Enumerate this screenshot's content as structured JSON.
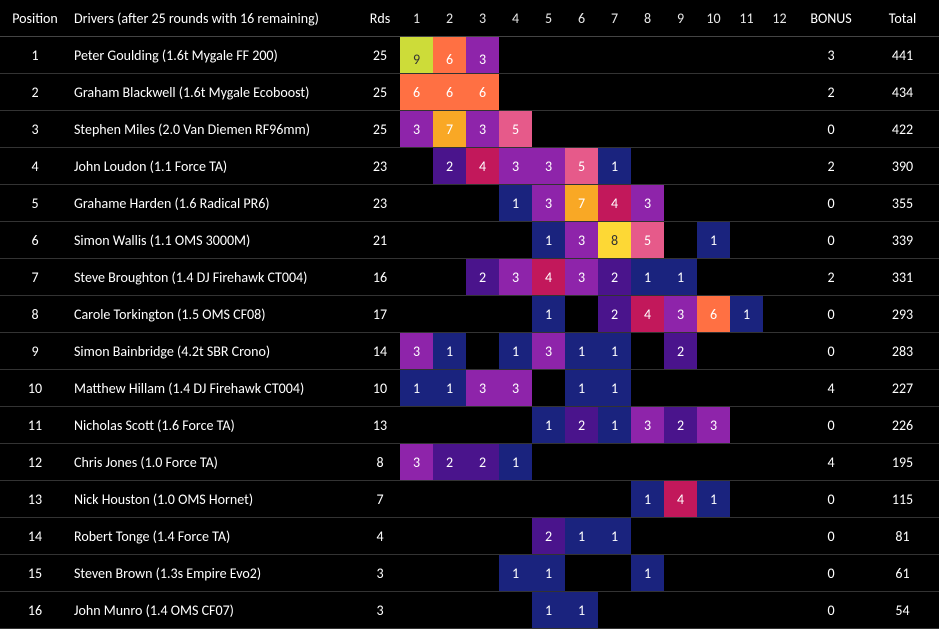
{
  "type": "table-heatmap",
  "background_color": "#000000",
  "text_color": "#ffffff",
  "header": {
    "position": "Position",
    "drivers": "Drivers (after 25 rounds with 16 remaining)",
    "rds": "Rds",
    "bonus": "BONUS",
    "total": "Total",
    "round_labels": [
      "1",
      "2",
      "3",
      "4",
      "5",
      "6",
      "7",
      "8",
      "9",
      "10",
      "11",
      "12"
    ]
  },
  "heat_palette_note": "cells colored by value — low=navy, mid=purple/magenta, high=orange/yellow",
  "color_scale": {
    "1": "#1a237e",
    "2": "#4a148c",
    "3": "#8e24aa",
    "4": "#c2185b",
    "5": "#e65a8a",
    "6": "#ff7043",
    "7": "#f9a825",
    "8": "#fdd835",
    "9": "#cddc39"
  },
  "rows": [
    {
      "pos": 1,
      "driver": "Peter Goulding (1.6t Mygale FF 200)",
      "rds": 25,
      "cells": [
        9,
        6,
        3,
        null,
        null,
        null,
        null,
        null,
        null,
        null,
        null,
        null
      ],
      "bonus": 3,
      "total": 441
    },
    {
      "pos": 2,
      "driver": "Graham Blackwell (1.6t Mygale Ecoboost)",
      "rds": 25,
      "cells": [
        6,
        6,
        6,
        null,
        null,
        null,
        null,
        null,
        null,
        null,
        null,
        null
      ],
      "bonus": 2,
      "total": 434
    },
    {
      "pos": 3,
      "driver": "Stephen Miles (2.0 Van Diemen RF96mm)",
      "rds": 25,
      "cells": [
        3,
        7,
        3,
        5,
        null,
        null,
        null,
        null,
        null,
        null,
        null,
        null
      ],
      "bonus": 0,
      "total": 422
    },
    {
      "pos": 4,
      "driver": "John Loudon (1.1 Force TA)",
      "rds": 23,
      "cells": [
        null,
        2,
        4,
        3,
        3,
        5,
        1,
        null,
        null,
        null,
        null,
        null
      ],
      "bonus": 2,
      "total": 390
    },
    {
      "pos": 5,
      "driver": "Grahame Harden (1.6 Radical PR6)",
      "rds": 23,
      "cells": [
        null,
        null,
        null,
        1,
        3,
        7,
        4,
        3,
        null,
        null,
        null,
        null
      ],
      "bonus": 0,
      "total": 355
    },
    {
      "pos": 6,
      "driver": "Simon Wallis (1.1 OMS 3000M)",
      "rds": 21,
      "cells": [
        null,
        null,
        null,
        null,
        1,
        3,
        8,
        5,
        null,
        1,
        null,
        null
      ],
      "bonus": 0,
      "total": 339
    },
    {
      "pos": 7,
      "driver": "Steve Broughton (1.4 DJ Firehawk CT004)",
      "rds": 16,
      "cells": [
        null,
        null,
        2,
        3,
        4,
        3,
        2,
        1,
        1,
        null,
        null,
        null
      ],
      "bonus": 2,
      "total": 331
    },
    {
      "pos": 8,
      "driver": "Carole Torkington (1.5 OMS CF08)",
      "rds": 17,
      "cells": [
        null,
        null,
        null,
        null,
        1,
        null,
        2,
        4,
        3,
        6,
        1,
        null
      ],
      "bonus": 0,
      "total": 293
    },
    {
      "pos": 9,
      "driver": "Simon Bainbridge (4.2t SBR Crono)",
      "rds": 14,
      "cells": [
        3,
        1,
        null,
        1,
        3,
        1,
        1,
        null,
        2,
        null,
        null,
        null
      ],
      "bonus": 0,
      "total": 283
    },
    {
      "pos": 10,
      "driver": "Matthew Hillam (1.4 DJ Firehawk CT004)",
      "rds": 10,
      "cells": [
        1,
        1,
        3,
        3,
        null,
        1,
        1,
        null,
        null,
        null,
        null,
        null
      ],
      "bonus": 4,
      "total": 227
    },
    {
      "pos": 11,
      "driver": "Nicholas Scott (1.6 Force TA)",
      "rds": 13,
      "cells": [
        null,
        null,
        null,
        null,
        1,
        2,
        1,
        3,
        2,
        3,
        null,
        null
      ],
      "bonus": 0,
      "total": 226
    },
    {
      "pos": 12,
      "driver": "Chris Jones (1.0 Force TA)",
      "rds": 8,
      "cells": [
        3,
        2,
        2,
        1,
        null,
        null,
        null,
        null,
        null,
        null,
        null,
        null
      ],
      "bonus": 4,
      "total": 195
    },
    {
      "pos": 13,
      "driver": "Nick Houston (1.0 OMS Hornet)",
      "rds": 7,
      "cells": [
        null,
        null,
        null,
        null,
        null,
        null,
        null,
        1,
        4,
        1,
        null,
        null
      ],
      "bonus": 0,
      "total": 115
    },
    {
      "pos": 14,
      "driver": "Robert Tonge (1.4 Force TA)",
      "rds": 4,
      "cells": [
        null,
        null,
        null,
        null,
        2,
        1,
        1,
        null,
        null,
        null,
        null,
        null
      ],
      "bonus": 0,
      "total": 81
    },
    {
      "pos": 15,
      "driver": "Steven Brown (1.3s Empire Evo2)",
      "rds": 3,
      "cells": [
        null,
        null,
        null,
        1,
        1,
        null,
        null,
        1,
        null,
        null,
        null,
        null
      ],
      "bonus": 0,
      "total": 61
    },
    {
      "pos": 16,
      "driver": "John Munro (1.4 OMS CF07)",
      "rds": 3,
      "cells": [
        null,
        null,
        null,
        null,
        1,
        1,
        null,
        null,
        null,
        null,
        null,
        null
      ],
      "bonus": 0,
      "total": 54
    }
  ]
}
